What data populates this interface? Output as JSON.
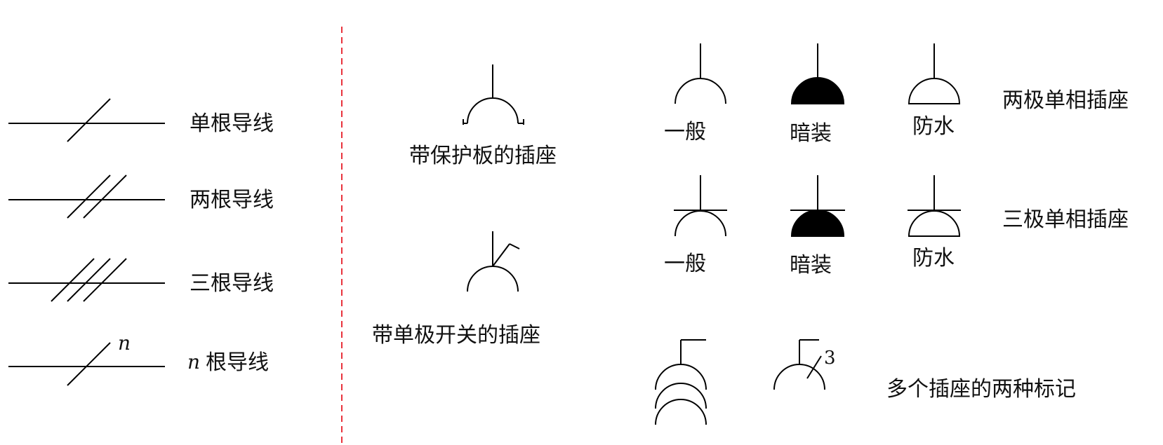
{
  "wires": [
    {
      "label": "单根导线"
    },
    {
      "label": "两根导线"
    },
    {
      "label": "三根导线"
    },
    {
      "n_mark": "n",
      "label_prefix": "n",
      "label": "根导线"
    }
  ],
  "middle": {
    "protect_plate_label": "带保护板的插座",
    "single_switch_label": "带单极开关的插座"
  },
  "right": {
    "two_pole": {
      "general": "一般",
      "concealed": "暗装",
      "waterproof": "防水",
      "label": "两极单相插座"
    },
    "three_pole": {
      "general": "一般",
      "concealed": "暗装",
      "waterproof": "防水",
      "label": "三极单相插座"
    },
    "multi": {
      "count": "3",
      "label": "多个插座的两种标记"
    }
  },
  "colors": {
    "divider": "#e8323c",
    "stroke": "#000000"
  }
}
